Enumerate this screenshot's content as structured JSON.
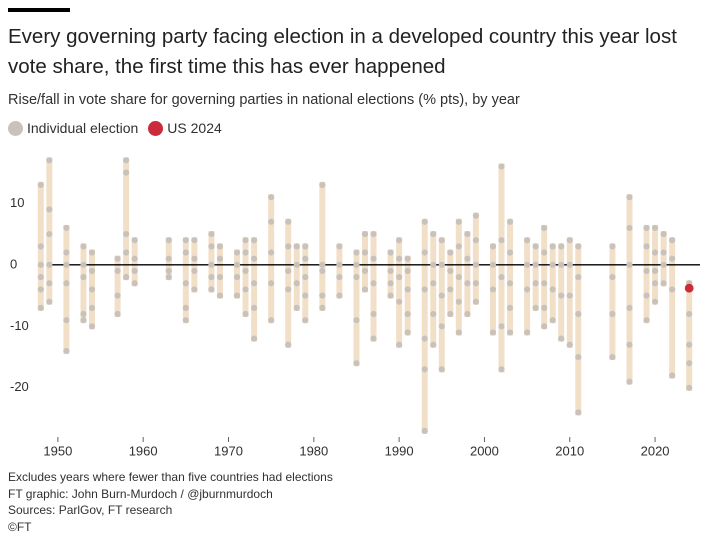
{
  "chart_data": {
    "type": "scatter",
    "title": "Every governing party facing election in a developed country this year lost vote share, the first time this has ever happened",
    "subtitle": "Rise/fall in vote share for governing parties in national elections (% pts), by year",
    "notes": [
      "Excludes years where fewer than five countries had elections",
      "FT graphic: John Burn-Murdoch / @jburnmurdoch",
      "Sources: ParlGov, FT research",
      "©FT"
    ],
    "xlim": [
      1946.5,
      2025.5
    ],
    "xticks": [
      1950,
      1960,
      1970,
      1980,
      1990,
      2000,
      2010,
      2020
    ],
    "ylim": [
      -28,
      19
    ],
    "yticks": [
      -20,
      -10,
      0,
      10
    ],
    "range_color": "#f2dfc8",
    "series": [
      {
        "name": "Individual election",
        "color": "#c9c2bb",
        "x": [
          1948,
          1948,
          1948,
          1948,
          1948,
          1948,
          1949,
          1949,
          1949,
          1949,
          1949,
          1949,
          1951,
          1951,
          1951,
          1951,
          1951,
          1951,
          1953,
          1953,
          1953,
          1953,
          1953,
          1954,
          1954,
          1954,
          1954,
          1954,
          1957,
          1957,
          1957,
          1957,
          1958,
          1958,
          1958,
          1958,
          1958,
          1959,
          1959,
          1959,
          1959,
          1963,
          1963,
          1963,
          1963,
          1965,
          1965,
          1965,
          1965,
          1965,
          1966,
          1966,
          1966,
          1966,
          1968,
          1968,
          1968,
          1968,
          1968,
          1969,
          1969,
          1969,
          1969,
          1971,
          1971,
          1971,
          1971,
          1972,
          1972,
          1972,
          1972,
          1972,
          1973,
          1973,
          1973,
          1973,
          1973,
          1975,
          1975,
          1975,
          1975,
          1975,
          1977,
          1977,
          1977,
          1977,
          1977,
          1978,
          1978,
          1978,
          1978,
          1979,
          1979,
          1979,
          1979,
          1979,
          1981,
          1981,
          1981,
          1981,
          1981,
          1983,
          1983,
          1983,
          1983,
          1985,
          1985,
          1985,
          1985,
          1985,
          1986,
          1986,
          1986,
          1986,
          1987,
          1987,
          1987,
          1987,
          1987,
          1989,
          1989,
          1989,
          1989,
          1990,
          1990,
          1990,
          1990,
          1990,
          1991,
          1991,
          1991,
          1991,
          1991,
          1993,
          1993,
          1993,
          1993,
          1993,
          1993,
          1994,
          1994,
          1994,
          1994,
          1994,
          1995,
          1995,
          1995,
          1995,
          1995,
          1996,
          1996,
          1996,
          1996,
          1997,
          1997,
          1997,
          1997,
          1997,
          1998,
          1998,
          1998,
          1998,
          1999,
          1999,
          1999,
          1999,
          1999,
          2001,
          2001,
          2001,
          2001,
          2002,
          2002,
          2002,
          2002,
          2002,
          2003,
          2003,
          2003,
          2003,
          2003,
          2005,
          2005,
          2005,
          2005,
          2006,
          2006,
          2006,
          2006,
          2007,
          2007,
          2007,
          2007,
          2007,
          2008,
          2008,
          2008,
          2008,
          2009,
          2009,
          2009,
          2009,
          2010,
          2010,
          2010,
          2010,
          2011,
          2011,
          2011,
          2011,
          2011,
          2015,
          2015,
          2015,
          2015,
          2017,
          2017,
          2017,
          2017,
          2017,
          2017,
          2019,
          2019,
          2019,
          2019,
          2019,
          2020,
          2020,
          2020,
          2020,
          2020,
          2021,
          2021,
          2021,
          2021,
          2022,
          2022,
          2022,
          2022,
          2024,
          2024,
          2024,
          2024,
          2024
        ],
        "values": [
          13,
          3,
          0,
          -2,
          -4,
          -7,
          17,
          9,
          5,
          0,
          -3,
          -6,
          6,
          2,
          0,
          -3,
          -9,
          -14,
          3,
          0,
          -2,
          -8,
          -9,
          2,
          -1,
          -4,
          -7,
          -10,
          1,
          -1,
          -5,
          -8,
          17,
          15,
          5,
          2,
          -2,
          4,
          1,
          -1,
          -3,
          4,
          1,
          -1,
          -2,
          4,
          2,
          -3,
          -7,
          -9,
          4,
          1,
          -1,
          -4,
          5,
          3,
          0,
          -2,
          -4,
          3,
          1,
          -2,
          -5,
          2,
          0,
          -2,
          -5,
          4,
          2,
          -1,
          -4,
          -8,
          4,
          1,
          -3,
          -7,
          -12,
          11,
          7,
          2,
          -3,
          -9,
          7,
          3,
          -1,
          -4,
          -13,
          3,
          0,
          -3,
          -7,
          3,
          1,
          -2,
          -5,
          -9,
          13,
          0,
          -1,
          -5,
          -7,
          3,
          0,
          -2,
          -5,
          2,
          0,
          -2,
          -9,
          -16,
          5,
          2,
          -1,
          -4,
          5,
          1,
          -3,
          -8,
          -12,
          2,
          -1,
          -3,
          -5,
          4,
          1,
          -2,
          -6,
          -13,
          1,
          -1,
          -4,
          -8,
          -11,
          7,
          2,
          -4,
          -12,
          -17,
          -27,
          5,
          0,
          -3,
          -8,
          -13,
          4,
          0,
          -5,
          -10,
          -17,
          2,
          -1,
          -4,
          -8,
          7,
          3,
          -2,
          -6,
          -11,
          5,
          1,
          -3,
          -8,
          8,
          4,
          0,
          -3,
          -6,
          3,
          0,
          -4,
          -11,
          16,
          4,
          -2,
          -10,
          -17,
          7,
          2,
          -3,
          -7,
          -11,
          4,
          0,
          -4,
          -11,
          3,
          0,
          -3,
          -7,
          6,
          2,
          -3,
          -7,
          -10,
          3,
          0,
          -4,
          -9,
          3,
          0,
          -5,
          -12,
          4,
          0,
          -5,
          -13,
          3,
          -2,
          -8,
          -15,
          -24,
          3,
          -2,
          -8,
          -15,
          11,
          6,
          0,
          -7,
          -13,
          -19,
          6,
          3,
          -1,
          -5,
          -9,
          6,
          2,
          -1,
          -3,
          -6,
          5,
          2,
          0,
          -3,
          4,
          1,
          -4,
          -18,
          -3,
          -8,
          -13,
          -16,
          -20
        ]
      },
      {
        "name": "US 2024",
        "color": "#cc2c3a",
        "x": [
          2024
        ],
        "values": [
          -3.8
        ]
      }
    ]
  }
}
